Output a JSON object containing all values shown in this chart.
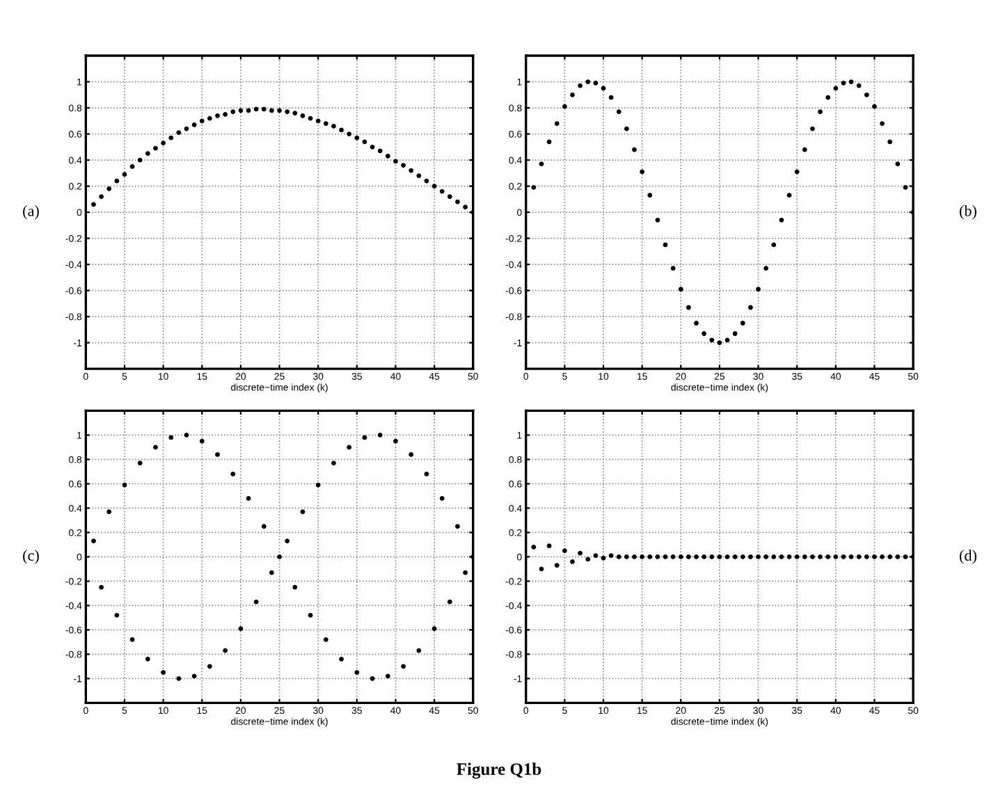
{
  "chart_data": [
    {
      "type": "scatter",
      "xlabel": "discrete−time index (k)",
      "annotations": [
        "(a)"
      ],
      "marker": "circle",
      "grid": true,
      "xlim": [
        0,
        50
      ],
      "ylim": [
        -1.2,
        1.2
      ],
      "xticks": [
        0,
        5,
        10,
        15,
        20,
        25,
        30,
        35,
        40,
        45,
        50
      ],
      "yticks": [
        -1,
        -0.8,
        -0.6,
        -0.4,
        -0.2,
        0,
        0.2,
        0.4,
        0.6,
        0.8,
        1
      ],
      "series": [
        {
          "color": "#000000",
          "x": [
            1,
            2,
            3,
            4,
            5,
            6,
            7,
            8,
            9,
            10,
            11,
            12,
            13,
            14,
            15,
            16,
            17,
            18,
            19,
            20,
            21,
            22,
            23,
            24,
            25,
            26,
            27,
            28,
            29,
            30,
            31,
            32,
            33,
            34,
            35,
            36,
            37,
            38,
            39,
            40,
            41,
            42,
            43,
            44,
            45,
            46,
            47,
            48,
            49,
            50
          ],
          "values": [
            0.06,
            0.12,
            0.18,
            0.24,
            0.29,
            0.35,
            0.4,
            0.45,
            0.49,
            0.53,
            0.57,
            0.61,
            0.64,
            0.67,
            0.7,
            0.72,
            0.74,
            0.75,
            0.77,
            0.78,
            0.78,
            0.79,
            0.79,
            0.78,
            0.78,
            0.77,
            0.76,
            0.74,
            0.72,
            0.7,
            0.68,
            0.66,
            0.63,
            0.6,
            0.57,
            0.54,
            0.5,
            0.47,
            0.43,
            0.39,
            0.36,
            0.32,
            0.28,
            0.24,
            0.2,
            0.16,
            0.12,
            0.08,
            0.04,
            0.0
          ]
        }
      ]
    },
    {
      "type": "scatter",
      "xlabel": "discrete−time index (k)",
      "annotations": [
        "(b)"
      ],
      "marker": "circle",
      "grid": true,
      "xlim": [
        0,
        50
      ],
      "ylim": [
        -1.2,
        1.2
      ],
      "xticks": [
        0,
        5,
        10,
        15,
        20,
        25,
        30,
        35,
        40,
        45,
        50
      ],
      "yticks": [
        -1,
        -0.8,
        -0.6,
        -0.4,
        -0.2,
        0,
        0.2,
        0.4,
        0.6,
        0.8,
        1
      ],
      "series": [
        {
          "color": "#000000",
          "x": [
            1,
            2,
            3,
            4,
            5,
            6,
            7,
            8,
            9,
            10,
            11,
            12,
            13,
            14,
            15,
            16,
            17,
            18,
            19,
            20,
            21,
            22,
            23,
            24,
            25,
            26,
            27,
            28,
            29,
            30,
            31,
            32,
            33,
            34,
            35,
            36,
            37,
            38,
            39,
            40,
            41,
            42,
            43,
            44,
            45,
            46,
            47,
            48,
            49,
            50
          ],
          "values": [
            0.19,
            0.37,
            0.54,
            0.68,
            0.81,
            0.9,
            0.97,
            1.0,
            0.99,
            0.95,
            0.88,
            0.77,
            0.64,
            0.48,
            0.31,
            0.13,
            -0.06,
            -0.25,
            -0.43,
            -0.59,
            -0.73,
            -0.85,
            -0.93,
            -0.98,
            -1.0,
            -0.98,
            -0.93,
            -0.85,
            -0.73,
            -0.59,
            -0.43,
            -0.25,
            -0.06,
            0.13,
            0.31,
            0.48,
            0.64,
            0.77,
            0.88,
            0.95,
            0.99,
            1.0,
            0.97,
            0.9,
            0.81,
            0.68,
            0.54,
            0.37,
            0.19,
            0.0
          ]
        }
      ]
    },
    {
      "type": "scatter",
      "xlabel": "discrete−time index (k)",
      "annotations": [
        "(c)"
      ],
      "marker": "circle",
      "grid": true,
      "xlim": [
        0,
        50
      ],
      "ylim": [
        -1.2,
        1.2
      ],
      "xticks": [
        0,
        5,
        10,
        15,
        20,
        25,
        30,
        35,
        40,
        45,
        50
      ],
      "yticks": [
        -1,
        -0.8,
        -0.6,
        -0.4,
        -0.2,
        0,
        0.2,
        0.4,
        0.6,
        0.8,
        1
      ],
      "series": [
        {
          "color": "#000000",
          "x": [
            1,
            2,
            3,
            4,
            5,
            6,
            7,
            8,
            9,
            10,
            11,
            12,
            13,
            14,
            15,
            16,
            17,
            18,
            19,
            20,
            21,
            22,
            23,
            24,
            25,
            26,
            27,
            28,
            29,
            30,
            31,
            32,
            33,
            34,
            35,
            36,
            37,
            38,
            39,
            40,
            41,
            42,
            43,
            44,
            45,
            46,
            47,
            48,
            49,
            50
          ],
          "values": [
            0.13,
            -0.25,
            0.37,
            -0.48,
            0.59,
            -0.68,
            0.77,
            -0.84,
            0.9,
            -0.95,
            0.98,
            -1.0,
            1.0,
            -0.98,
            0.95,
            -0.9,
            0.84,
            -0.77,
            0.68,
            -0.59,
            0.48,
            -0.37,
            0.25,
            -0.13,
            0.0,
            0.13,
            -0.25,
            0.37,
            -0.48,
            0.59,
            -0.68,
            0.77,
            -0.84,
            0.9,
            -0.95,
            0.98,
            -1.0,
            1.0,
            -0.98,
            0.95,
            -0.9,
            0.84,
            -0.77,
            0.68,
            -0.59,
            0.48,
            -0.37,
            0.25,
            -0.13,
            0.0
          ]
        }
      ]
    },
    {
      "type": "scatter",
      "xlabel": "discrete−time index (k)",
      "annotations": [
        "(d)",
        "Figure Q1b"
      ],
      "marker": "circle",
      "grid": true,
      "xlim": [
        0,
        50
      ],
      "ylim": [
        -1.2,
        1.2
      ],
      "xticks": [
        0,
        5,
        10,
        15,
        20,
        25,
        30,
        35,
        40,
        45,
        50
      ],
      "yticks": [
        -1,
        -0.8,
        -0.6,
        -0.4,
        -0.2,
        0,
        0.2,
        0.4,
        0.6,
        0.8,
        1
      ],
      "series": [
        {
          "color": "#000000",
          "x": [
            1,
            2,
            3,
            4,
            5,
            6,
            7,
            8,
            9,
            10,
            11,
            12,
            13,
            14,
            15,
            16,
            17,
            18,
            19,
            20,
            21,
            22,
            23,
            24,
            25,
            26,
            27,
            28,
            29,
            30,
            31,
            32,
            33,
            34,
            35,
            36,
            37,
            38,
            39,
            40,
            41,
            42,
            43,
            44,
            45,
            46,
            47,
            48,
            49,
            50
          ],
          "values": [
            0.08,
            -0.1,
            0.09,
            -0.07,
            0.05,
            -0.04,
            0.03,
            -0.02,
            0.01,
            -0.01,
            0.01,
            0,
            0,
            0,
            0,
            0,
            0,
            0,
            0,
            0,
            0,
            0,
            0,
            0,
            0,
            0,
            0,
            0,
            0,
            0,
            0,
            0,
            0,
            0,
            0,
            0,
            0,
            0,
            0,
            0,
            0,
            0,
            0,
            0,
            0,
            0,
            0,
            0,
            0,
            0
          ]
        }
      ]
    }
  ]
}
